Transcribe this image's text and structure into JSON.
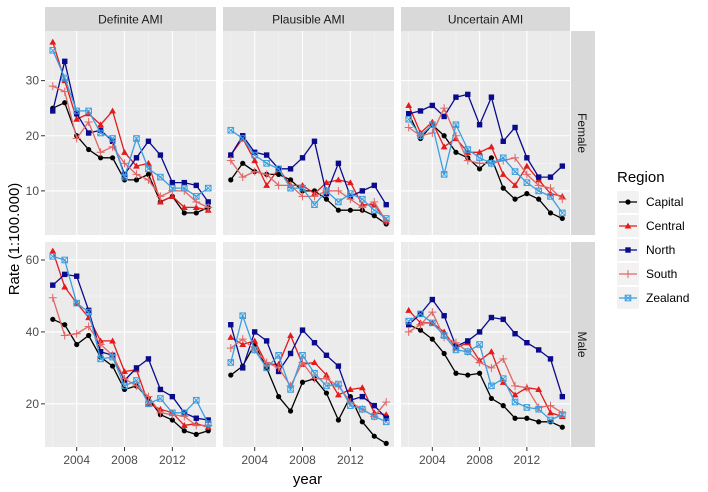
{
  "chart_data": {
    "type": "line",
    "xlabel": "year",
    "ylabel": "Rate (1:100.000)",
    "x": [
      2002,
      2003,
      2004,
      2005,
      2006,
      2007,
      2008,
      2009,
      2010,
      2011,
      2012,
      2013,
      2014,
      2015
    ],
    "xticks": [
      2004,
      2008,
      2012
    ],
    "xtick_labels": [
      "2004",
      "2008",
      "2012"
    ],
    "columns": [
      "Definite AMI",
      "Plausible AMI",
      "Uncertain AMI"
    ],
    "rows": [
      "Female",
      "Male"
    ],
    "legend": {
      "title": "Region",
      "entries": [
        "Capital",
        "Central",
        "North",
        "South",
        "Zealand"
      ],
      "placement": "right"
    },
    "series_colors": {
      "Capital": "#000000",
      "Central": "#e41a1c",
      "North": "#0a0a8c",
      "South": "#e06666",
      "Zealand": "#3a9ee0"
    },
    "row_axes": {
      "Female": {
        "ylim": [
          2,
          39
        ],
        "ticks": [
          10,
          20,
          30
        ],
        "tick_labels": [
          "10",
          "20",
          "30"
        ]
      },
      "Male": {
        "ylim": [
          8,
          65
        ],
        "ticks": [
          20,
          40,
          60
        ],
        "tick_labels": [
          "20",
          "40",
          "60"
        ]
      }
    },
    "panels": [
      {
        "row": "Female",
        "col": "Definite AMI",
        "series": [
          {
            "name": "Capital",
            "values": [
              25,
              26,
              20,
              17.5,
              16,
              16,
              12,
              12,
              13,
              8,
              9,
              6,
              6,
              7
            ]
          },
          {
            "name": "Central",
            "values": [
              37,
              30,
              23,
              24,
              22,
              24.5,
              17,
              14.5,
              15,
              8,
              9,
              7,
              7,
              6.5
            ]
          },
          {
            "name": "North",
            "values": [
              24.5,
              33.5,
              24,
              20.5,
              21,
              19,
              13,
              16,
              19,
              16.5,
              11.5,
              11.5,
              11,
              8
            ]
          },
          {
            "name": "South",
            "values": [
              29,
              28,
              19.5,
              22.5,
              17,
              18,
              15,
              13,
              12,
              9,
              10,
              10,
              8,
              7
            ]
          },
          {
            "name": "Zealand",
            "values": [
              35.5,
              30.5,
              24.5,
              24.5,
              20.5,
              19.5,
              12.5,
              19.5,
              14,
              12.5,
              10.5,
              10.5,
              9,
              10.5
            ]
          }
        ]
      },
      {
        "row": "Female",
        "col": "Plausible AMI",
        "series": [
          {
            "name": "Capital",
            "values": [
              12,
              15,
              13.5,
              13,
              13,
              12,
              10,
              10,
              8.5,
              6.5,
              6.5,
              6.5,
              5.5,
              4
            ]
          },
          {
            "name": "Central",
            "values": [
              16.5,
              19.5,
              15.5,
              11,
              14,
              11,
              11,
              9.5,
              11.5,
              12,
              11.5,
              7.5,
              7.5,
              4.5
            ]
          },
          {
            "name": "North",
            "values": [
              16.5,
              20,
              17,
              16.5,
              14,
              14,
              16,
              19,
              9.5,
              15,
              9,
              10,
              11,
              7.5
            ]
          },
          {
            "name": "South",
            "values": [
              15.5,
              12.5,
              13.5,
              13,
              11,
              11,
              9,
              9,
              10,
              10,
              8.5,
              7,
              8,
              4.5
            ]
          },
          {
            "name": "Zealand",
            "values": [
              21,
              19.5,
              16.5,
              15,
              14,
              10.5,
              10.5,
              7.5,
              10,
              8,
              9.5,
              8.5,
              6.5,
              5
            ]
          }
        ]
      },
      {
        "row": "Female",
        "col": "Uncertain AMI",
        "series": [
          {
            "name": "Capital",
            "values": [
              24,
              19.5,
              22,
              20,
              17,
              16,
              14,
              16,
              10.5,
              8.5,
              9.5,
              8.5,
              6,
              5
            ]
          },
          {
            "name": "Central",
            "values": [
              25.5,
              20.5,
              22.5,
              18,
              19.5,
              17,
              17,
              18,
              13,
              11,
              14.5,
              12,
              9.5,
              9
            ]
          },
          {
            "name": "North",
            "values": [
              24,
              24.5,
              25.5,
              23.5,
              27,
              27.5,
              22,
              27,
              19,
              21.5,
              16,
              12.5,
              12.5,
              14.5
            ]
          },
          {
            "name": "South",
            "values": [
              21.5,
              20,
              20.5,
              25,
              20,
              15.5,
              15,
              15,
              15.5,
              16,
              13,
              11,
              10.5,
              8.5
            ]
          },
          {
            "name": "Zealand",
            "values": [
              23,
              20,
              22,
              13,
              22,
              17.5,
              16,
              15,
              16,
              13.5,
              11.5,
              10,
              9,
              6
            ]
          }
        ]
      },
      {
        "row": "Male",
        "col": "Definite AMI",
        "series": [
          {
            "name": "Capital",
            "values": [
              43.5,
              42,
              36.5,
              39,
              33,
              30.5,
              24,
              25,
              21.5,
              17,
              15.5,
              12.5,
              11.5,
              12.5
            ]
          },
          {
            "name": "Central",
            "values": [
              62.5,
              52.5,
              48,
              44,
              37.5,
              37.5,
              29,
              29.5,
              20,
              18.5,
              17.5,
              14,
              14.5,
              13.5
            ]
          },
          {
            "name": "North",
            "values": [
              53,
              56,
              55.5,
              46,
              34.5,
              33.5,
              26.5,
              30,
              32.5,
              24,
              22,
              17.5,
              16,
              15.5
            ]
          },
          {
            "name": "South",
            "values": [
              49.5,
              39,
              39.5,
              41.5,
              36.5,
              33.5,
              27,
              25,
              22,
              17.5,
              17,
              16.5,
              14,
              14
            ]
          },
          {
            "name": "Zealand",
            "values": [
              61,
              60,
              48,
              45.5,
              32.5,
              33,
              25,
              26.5,
              20,
              21.5,
              17.5,
              17.5,
              21,
              14.5
            ]
          }
        ]
      },
      {
        "row": "Male",
        "col": "Plausible AMI",
        "series": [
          {
            "name": "Capital",
            "values": [
              28,
              30.5,
              36.5,
              30,
              22,
              18,
              26,
              27,
              23,
              15.5,
              22,
              15,
              11,
              9
            ]
          },
          {
            "name": "Central",
            "values": [
              38.5,
              36.5,
              37.5,
              31,
              31,
              39,
              31,
              31.5,
              28,
              22.5,
              24,
              24.5,
              17.5,
              17
            ]
          },
          {
            "name": "North",
            "values": [
              42,
              30,
              40,
              37.5,
              29,
              34,
              40.5,
              37,
              33.5,
              30.5,
              21,
              22,
              19.5,
              16
            ]
          },
          {
            "name": "South",
            "values": [
              35.5,
              38,
              35,
              31.5,
              30,
              25,
              31.5,
              27,
              27,
              25,
              20.5,
              18.5,
              16.5,
              20.5
            ]
          },
          {
            "name": "Zealand",
            "values": [
              31.5,
              44.5,
              35,
              30,
              33.5,
              24,
              33.5,
              28.5,
              25,
              25.5,
              19.5,
              18.5,
              16.5,
              15
            ]
          }
        ]
      },
      {
        "row": "Male",
        "col": "Uncertain AMI",
        "series": [
          {
            "name": "Capital",
            "values": [
              42,
              40.5,
              38,
              34,
              28.5,
              28,
              28.5,
              21.5,
              19.5,
              16,
              16,
              15,
              15,
              13.5
            ]
          },
          {
            "name": "Central",
            "values": [
              46,
              42.5,
              42.5,
              40,
              35.5,
              37,
              32,
              34.5,
              26,
              22.5,
              24.5,
              24,
              17.5,
              16.5
            ]
          },
          {
            "name": "North",
            "values": [
              42,
              45,
              49,
              44.5,
              36,
              37.5,
              40,
              44,
              43.5,
              39.5,
              37,
              35,
              32.5,
              22
            ]
          },
          {
            "name": "South",
            "values": [
              40,
              42,
              45.5,
              38.5,
              37,
              34.5,
              31.5,
              30,
              32.5,
              25,
              24.5,
              19,
              19.5,
              17.5
            ]
          },
          {
            "name": "Zealand",
            "values": [
              43,
              45,
              42.5,
              39,
              35,
              34.5,
              36.5,
              25,
              27,
              20.5,
              19,
              18.5,
              15.5,
              17
            ]
          }
        ]
      }
    ]
  }
}
